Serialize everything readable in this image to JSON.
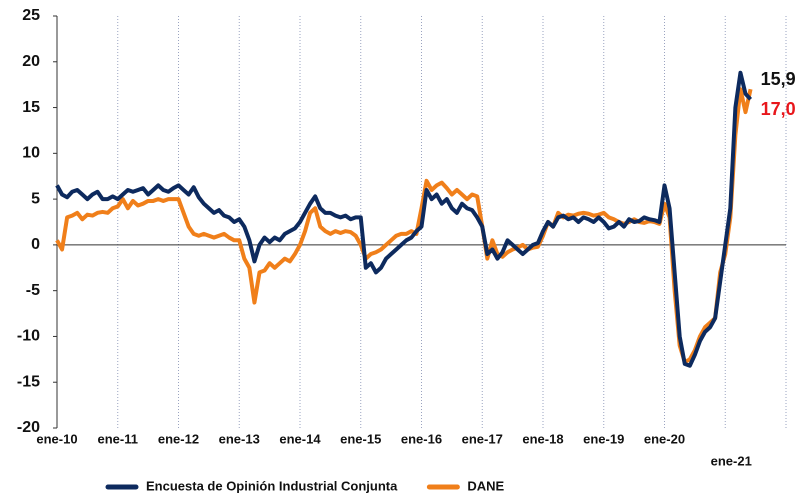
{
  "chart_data": {
    "type": "line",
    "categories": [
      "ene-10",
      null,
      null,
      null,
      null,
      null,
      null,
      null,
      null,
      null,
      null,
      null,
      "ene-11",
      null,
      null,
      null,
      null,
      null,
      null,
      null,
      null,
      null,
      null,
      null,
      "ene-12",
      null,
      null,
      null,
      null,
      null,
      null,
      null,
      null,
      null,
      null,
      null,
      "ene-13",
      null,
      null,
      null,
      null,
      null,
      null,
      null,
      null,
      null,
      null,
      null,
      "ene-14",
      null,
      null,
      null,
      null,
      null,
      null,
      null,
      null,
      null,
      null,
      null,
      "ene-15",
      null,
      null,
      null,
      null,
      null,
      null,
      null,
      null,
      null,
      null,
      null,
      "ene-16",
      null,
      null,
      null,
      null,
      null,
      null,
      null,
      null,
      null,
      null,
      null,
      "ene-17",
      null,
      null,
      null,
      null,
      null,
      null,
      null,
      null,
      null,
      null,
      null,
      "ene-18",
      null,
      null,
      null,
      null,
      null,
      null,
      null,
      null,
      null,
      null,
      null,
      "ene-19",
      null,
      null,
      null,
      null,
      null,
      null,
      null,
      null,
      null,
      null,
      null,
      "ene-20",
      null,
      null,
      null,
      null,
      null,
      null,
      null,
      null,
      null,
      null,
      null,
      "ene-21",
      null,
      null,
      null,
      null,
      null
    ],
    "series": [
      {
        "name": "Encuesta de Opinión Industrial Conjunta",
        "color": "#0d2a5e",
        "label_color": "#111111",
        "values": [
          6.5,
          5.5,
          5.2,
          5.8,
          6,
          5.5,
          5,
          5.5,
          5.8,
          5,
          5,
          5.3,
          5,
          5.5,
          6,
          5.8,
          6,
          6.2,
          5.5,
          6,
          6.5,
          6,
          5.8,
          6.2,
          6.5,
          6,
          5.5,
          6.3,
          5.2,
          4.5,
          4,
          3.5,
          3.8,
          3.2,
          3,
          2.5,
          2.8,
          2,
          0.5,
          -1.8,
          0,
          0.8,
          0.3,
          0.8,
          0.5,
          1.2,
          1.5,
          1.8,
          2.5,
          3.5,
          4.5,
          5.3,
          4,
          3.5,
          3.5,
          3.2,
          3,
          3.2,
          2.8,
          3,
          3,
          -2.5,
          -2,
          -3,
          -2.5,
          -1.5,
          -1,
          -0.5,
          0,
          0.5,
          0.8,
          1.5,
          2,
          6,
          5,
          5.5,
          4.5,
          5,
          4,
          3.5,
          4.5,
          4,
          3.8,
          3,
          2,
          -1,
          -0.5,
          -1.5,
          -0.8,
          0.5,
          0,
          -0.5,
          -1,
          -0.5,
          0,
          0.2,
          1.5,
          2.5,
          2,
          3,
          3.2,
          2.8,
          3,
          2.5,
          3,
          2.8,
          2.5,
          3,
          2.5,
          1.8,
          2,
          2.5,
          2,
          2.8,
          2.5,
          2.6,
          3,
          2.8,
          2.7,
          2.5,
          6.5,
          4,
          -3,
          -10,
          -13,
          -13.2,
          -12,
          -10.5,
          -9.5,
          -9,
          -8,
          -4,
          0,
          4,
          15,
          18.8,
          16.5,
          15.9
        ],
        "value_labels": [
          null,
          null,
          null,
          null,
          null,
          null,
          null,
          null,
          null,
          null,
          null,
          null,
          null,
          null,
          null,
          null,
          null,
          null,
          null,
          null,
          null,
          null,
          null,
          null,
          null,
          null,
          null,
          null,
          null,
          null,
          null,
          null,
          null,
          null,
          null,
          null,
          null,
          null,
          null,
          null,
          null,
          null,
          null,
          null,
          null,
          null,
          null,
          null,
          null,
          null,
          null,
          null,
          null,
          null,
          null,
          null,
          null,
          null,
          null,
          null,
          null,
          null,
          null,
          null,
          null,
          null,
          null,
          null,
          null,
          null,
          null,
          null,
          null,
          null,
          null,
          null,
          null,
          null,
          null,
          null,
          null,
          null,
          null,
          null,
          null,
          null,
          null,
          null,
          null,
          null,
          null,
          null,
          null,
          null,
          null,
          null,
          null,
          null,
          null,
          null,
          null,
          null,
          null,
          null,
          null,
          null,
          null,
          null,
          null,
          null,
          null,
          null,
          null,
          null,
          null,
          null,
          null,
          null,
          null,
          null,
          null,
          null,
          null,
          null,
          null,
          null,
          null,
          null,
          null,
          null,
          null,
          null,
          null,
          null,
          null,
          null,
          null,
          "15,9"
        ]
      },
      {
        "name": "DANE",
        "color": "#f07f1a",
        "label_color": "#e8161b",
        "values": [
          0.5,
          -0.5,
          3,
          3.2,
          3.5,
          2.8,
          3.3,
          3.2,
          3.5,
          3.6,
          3.5,
          4,
          4.2,
          5,
          4,
          4.8,
          4.3,
          4.5,
          4.8,
          4.8,
          5,
          4.8,
          5,
          5,
          5,
          3.5,
          2,
          1.2,
          1,
          1.2,
          1,
          0.8,
          1,
          1.2,
          0.8,
          0.5,
          0.5,
          -1.5,
          -2.5,
          -6.3,
          -3,
          -2.8,
          -2,
          -2.5,
          -2,
          -1.5,
          -1.8,
          -1,
          0,
          1.5,
          3.5,
          4,
          2,
          1.5,
          1.2,
          1.5,
          1.3,
          1.5,
          1.4,
          1,
          0,
          -1.5,
          -1,
          -0.8,
          -0.5,
          0,
          0.5,
          1,
          1.2,
          1.2,
          1.5,
          1.2,
          4,
          7,
          6,
          6.5,
          6.8,
          6.2,
          5.5,
          6,
          5.5,
          5,
          5.5,
          5.3,
          2,
          -1.5,
          0.5,
          -1,
          -1.3,
          -0.8,
          -0.5,
          -0.3,
          0,
          -0.5,
          -0.3,
          -0.2,
          1,
          2.5,
          2,
          3.5,
          3,
          3.3,
          3.2,
          3.4,
          3.5,
          3.4,
          3.2,
          3.3,
          3.5,
          3,
          2.8,
          2.5,
          2.3,
          2.5,
          2.8,
          2.5,
          2.4,
          2.6,
          2.5,
          2.3,
          4.5,
          3,
          -5,
          -11,
          -12.8,
          -12.5,
          -11.5,
          -10,
          -9,
          -8.5,
          -8,
          -3,
          -1,
          3,
          12,
          17,
          14.5,
          17.0
        ],
        "value_labels": [
          null,
          null,
          null,
          null,
          null,
          null,
          null,
          null,
          null,
          null,
          null,
          null,
          null,
          null,
          null,
          null,
          null,
          null,
          null,
          null,
          null,
          null,
          null,
          null,
          null,
          null,
          null,
          null,
          null,
          null,
          null,
          null,
          null,
          null,
          null,
          null,
          null,
          null,
          null,
          null,
          null,
          null,
          null,
          null,
          null,
          null,
          null,
          null,
          null,
          null,
          null,
          null,
          null,
          null,
          null,
          null,
          null,
          null,
          null,
          null,
          null,
          null,
          null,
          null,
          null,
          null,
          null,
          null,
          null,
          null,
          null,
          null,
          null,
          null,
          null,
          null,
          null,
          null,
          null,
          null,
          null,
          null,
          null,
          null,
          null,
          null,
          null,
          null,
          null,
          null,
          null,
          null,
          null,
          null,
          null,
          null,
          null,
          null,
          null,
          null,
          null,
          null,
          null,
          null,
          null,
          null,
          null,
          null,
          null,
          null,
          null,
          null,
          null,
          null,
          null,
          null,
          null,
          null,
          null,
          null,
          null,
          null,
          null,
          null,
          null,
          null,
          null,
          null,
          null,
          null,
          null,
          null,
          null,
          null,
          null,
          null,
          null,
          "17,0"
        ]
      }
    ],
    "ylim": [
      -20,
      25
    ],
    "yticks": [
      -20,
      -15,
      -10,
      -5,
      0,
      5,
      10,
      15,
      20,
      25
    ],
    "grid": true,
    "legend": "bottom"
  }
}
